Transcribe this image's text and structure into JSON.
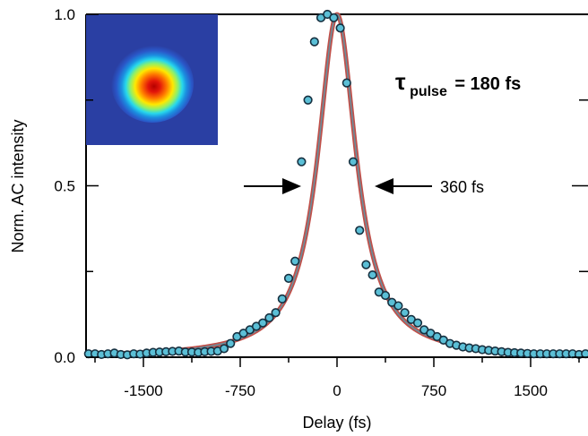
{
  "chart_data": {
    "type": "scatter",
    "xlabel": "Delay (fs)",
    "ylabel": "Norm. AC intensity",
    "xlim": [
      -1900,
      1900
    ],
    "ylim": [
      0,
      1
    ],
    "xticks": [
      -1500,
      -750,
      0,
      750,
      1500
    ],
    "xtick_labels": [
      "-1500",
      "-750",
      "0",
      "750",
      "1500"
    ],
    "yticks": [
      0,
      0.5,
      1
    ],
    "ytick_labels": [
      "0.0",
      "0.5",
      "1.0"
    ],
    "grid": false,
    "colors": {
      "fit": "#c0504a",
      "fit_core": "#6a8e9c",
      "marker": "#5bbfd6",
      "marker_edge": "#163040"
    },
    "annotation": {
      "fwhm_label": "360 fs",
      "fwhm_fs": 360
    },
    "tau": {
      "symbol": "τ",
      "subscript": "pulse",
      "value": "= 180 fs"
    },
    "inset": {
      "type": "beam-profile-image",
      "colormap": "jet"
    },
    "series": [
      {
        "kind": "fit-line",
        "fwhm_fs": 360
      },
      {
        "kind": "markers",
        "x": [
          -1925,
          -1875,
          -1825,
          -1775,
          -1725,
          -1675,
          -1625,
          -1575,
          -1525,
          -1475,
          -1425,
          -1375,
          -1325,
          -1275,
          -1225,
          -1175,
          -1125,
          -1075,
          -1025,
          -975,
          -925,
          -875,
          -825,
          -775,
          -725,
          -675,
          -625,
          -575,
          -525,
          -475,
          -425,
          -375,
          -325,
          -275,
          -225,
          -175,
          -125,
          -75,
          -25,
          25,
          75,
          125,
          175,
          225,
          275,
          325,
          375,
          425,
          475,
          525,
          575,
          625,
          675,
          725,
          775,
          825,
          875,
          925,
          975,
          1025,
          1075,
          1125,
          1175,
          1225,
          1275,
          1325,
          1375,
          1425,
          1475,
          1525,
          1575,
          1625,
          1675,
          1725,
          1775,
          1825,
          1875,
          1925
        ],
        "y": [
          0.01,
          0.01,
          0.008,
          0.01,
          0.012,
          0.008,
          0.007,
          0.01,
          0.009,
          0.012,
          0.014,
          0.015,
          0.016,
          0.017,
          0.018,
          0.015,
          0.015,
          0.014,
          0.016,
          0.017,
          0.018,
          0.025,
          0.04,
          0.06,
          0.07,
          0.08,
          0.09,
          0.1,
          0.115,
          0.13,
          0.17,
          0.23,
          0.28,
          0.57,
          0.75,
          0.92,
          0.99,
          1.0,
          0.99,
          0.96,
          0.8,
          0.57,
          0.37,
          0.27,
          0.24,
          0.19,
          0.18,
          0.16,
          0.15,
          0.13,
          0.11,
          0.1,
          0.08,
          0.07,
          0.06,
          0.05,
          0.04,
          0.035,
          0.03,
          0.027,
          0.025,
          0.022,
          0.02,
          0.018,
          0.016,
          0.014,
          0.013,
          0.012,
          0.011,
          0.01,
          0.01,
          0.01,
          0.01,
          0.01,
          0.01,
          0.01,
          0.008,
          0.01
        ]
      }
    ]
  }
}
